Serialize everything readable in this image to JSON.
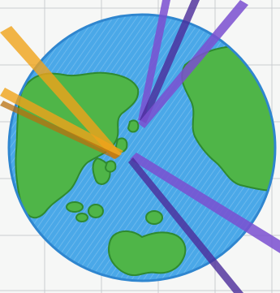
{
  "drawing": {
    "subject": "globe",
    "colors": {
      "paper": "#f6f7f6",
      "grid": "#c9ccd0",
      "ocean": "#4aa8e8",
      "ocean_dark": "#2f86cf",
      "land": "#4fb548",
      "land_dark": "#2f8a30",
      "beam_orange": "#f0a21a",
      "beam_orange_dark": "#b8700f",
      "beam_purple": "#7a4fd0",
      "beam_purple_dark": "#4b2a9a"
    }
  }
}
